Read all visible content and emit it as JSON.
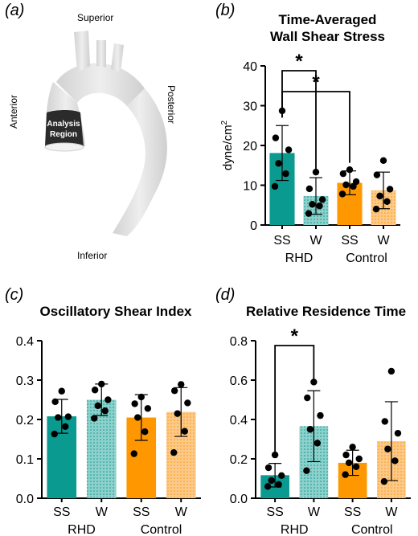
{
  "panels": {
    "a": "(a)",
    "b": "(b)",
    "c": "(c)",
    "d": "(d)"
  },
  "anatomy": {
    "superior": "Superior",
    "inferior": "Inferior",
    "anterior": "Anterior",
    "posterior": "Posterior",
    "region_line1": "Analysis",
    "region_line2": "Region"
  },
  "colors": {
    "rhd": "#0a9a90",
    "rhd_light": "#8ed0cb",
    "control": "#ff9800",
    "control_light": "#fcc98a",
    "vessel": "#e4e4e4",
    "region": "#2b2b2b"
  },
  "chart_data": [
    {
      "type": "bar",
      "title": "Time-Averaged Wall Shear Stress",
      "title_lines": [
        "Time-Averaged",
        "Wall Shear Stress"
      ],
      "ylabel": "dyne/cm",
      "ylabel_sup": "2",
      "ylim": [
        0,
        40
      ],
      "yticks": [
        "0",
        "10",
        "20",
        "30",
        "40"
      ],
      "categories": [
        "SS",
        "W",
        "SS",
        "W"
      ],
      "groups": [
        "RHD",
        "Control"
      ],
      "means": [
        18.1,
        7.3,
        10.6,
        8.7
      ],
      "sd": [
        6.9,
        4.6,
        3.0,
        4.6
      ],
      "points": [
        [
          28.7,
          21.9,
          18.9,
          15.5,
          12.9,
          9.7
        ],
        [
          13.3,
          9.1,
          6.4,
          5.2,
          4.8,
          2.9
        ],
        [
          13.9,
          12.9,
          10.9,
          10.1,
          9.7,
          7.8
        ],
        [
          16.2,
          12.6,
          9.0,
          7.3,
          5.9,
          4.0
        ]
      ],
      "significance": [
        {
          "from": 0,
          "to": 1,
          "label": "*"
        },
        {
          "from": 0,
          "to": 2,
          "label": "*"
        }
      ]
    },
    {
      "type": "bar",
      "title": "Oscillatory Shear Index",
      "title_lines": [
        "Oscillatory Shear Index"
      ],
      "ylabel": "",
      "ylabel_sup": "",
      "ylim": [
        0,
        0.4
      ],
      "yticks": [
        "0.0",
        "0.1",
        "0.2",
        "0.3",
        "0.4"
      ],
      "categories": [
        "SS",
        "W",
        "SS",
        "W"
      ],
      "groups": [
        "RHD",
        "Control"
      ],
      "means": [
        0.208,
        0.25,
        0.205,
        0.219
      ],
      "sd": [
        0.043,
        0.04,
        0.058,
        0.062
      ],
      "points": [
        [
          0.272,
          0.245,
          0.207,
          0.205,
          0.182,
          0.163
        ],
        [
          0.29,
          0.275,
          0.25,
          0.235,
          0.222,
          0.203
        ],
        [
          0.257,
          0.24,
          0.228,
          0.205,
          0.169,
          0.113
        ],
        [
          0.289,
          0.273,
          0.242,
          0.215,
          0.17,
          0.116
        ]
      ],
      "significance": []
    },
    {
      "type": "bar",
      "title": "Relative Residence Time",
      "title_lines": [
        "Relative Residence Time"
      ],
      "ylabel": "",
      "ylabel_sup": "",
      "ylim": [
        0,
        0.8
      ],
      "yticks": [
        "0.0",
        "0.2",
        "0.4",
        "0.6",
        "0.8"
      ],
      "categories": [
        "SS",
        "W",
        "SS",
        "W"
      ],
      "groups": [
        "RHD",
        "Control"
      ],
      "means": [
        0.117,
        0.366,
        0.18,
        0.29
      ],
      "sd": [
        0.06,
        0.18,
        0.064,
        0.2
      ],
      "points": [
        [
          0.22,
          0.155,
          0.115,
          0.09,
          0.07,
          0.06
        ],
        [
          0.59,
          0.51,
          0.42,
          0.35,
          0.28,
          0.14
        ],
        [
          0.26,
          0.22,
          0.2,
          0.18,
          0.16,
          0.12
        ],
        [
          0.645,
          0.39,
          0.33,
          0.25,
          0.19,
          0.085
        ]
      ],
      "significance": [
        {
          "from": 0,
          "to": 1,
          "label": "*"
        }
      ]
    }
  ]
}
